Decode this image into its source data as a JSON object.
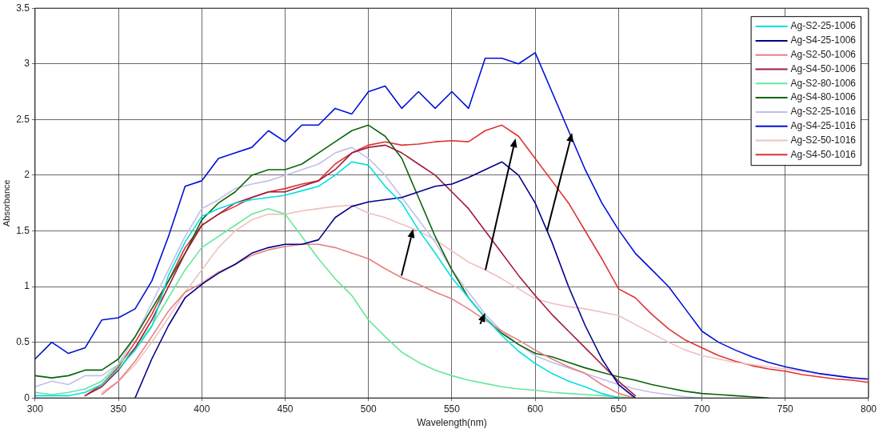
{
  "chart_data": {
    "type": "line",
    "xlabel": "Wavelength(nm)",
    "ylabel": "Absorbance",
    "x": [
      300,
      310,
      320,
      330,
      340,
      350,
      360,
      370,
      380,
      390,
      400,
      410,
      420,
      430,
      440,
      450,
      460,
      470,
      480,
      490,
      500,
      510,
      520,
      530,
      540,
      550,
      560,
      570,
      580,
      590,
      600,
      610,
      620,
      630,
      640,
      650,
      660,
      670,
      680,
      690,
      700,
      710,
      720,
      730,
      740,
      750,
      760,
      770,
      780,
      790,
      800
    ],
    "xlim": [
      300,
      800
    ],
    "xticks": [
      300,
      350,
      400,
      450,
      500,
      550,
      600,
      650,
      700,
      750,
      800
    ],
    "ylim": [
      0,
      3.5
    ],
    "yticks": [
      0,
      0.5,
      1,
      1.5,
      2,
      2.5,
      3,
      3.5
    ],
    "grid": true,
    "legend": "top right",
    "marker": "none",
    "line_style": "solid",
    "series": [
      {
        "name": "Ag-S2-25-1006",
        "color": "#00e0e0",
        "values": [
          0.02,
          0.02,
          0.02,
          0.05,
          0.12,
          0.26,
          0.43,
          0.64,
          1.1,
          1.4,
          1.63,
          1.7,
          1.75,
          1.78,
          1.8,
          1.82,
          1.86,
          1.9,
          2.0,
          2.12,
          2.09,
          1.9,
          1.75,
          1.51,
          1.3,
          1.08,
          0.9,
          0.72,
          0.56,
          0.42,
          0.31,
          0.22,
          0.15,
          0.1,
          0.04,
          0,
          null,
          null,
          null,
          null,
          null,
          null,
          null,
          null,
          null,
          null,
          null,
          null,
          null,
          null,
          null
        ]
      },
      {
        "name": "Ag-S4-25-1006",
        "color": "#00008b",
        "values": [
          null,
          null,
          null,
          null,
          null,
          null,
          0,
          0.35,
          0.65,
          0.9,
          1.02,
          1.12,
          1.2,
          1.3,
          1.35,
          1.38,
          1.38,
          1.42,
          1.62,
          1.72,
          1.76,
          1.78,
          1.8,
          1.85,
          1.9,
          1.92,
          1.98,
          2.05,
          2.12,
          2.0,
          1.75,
          1.4,
          1.0,
          0.65,
          0.35,
          0.12,
          0,
          null,
          null,
          null,
          null,
          null,
          null,
          null,
          null,
          null,
          null,
          null,
          null,
          null,
          null
        ]
      },
      {
        "name": "Ag-S2-50-1006",
        "color": "#e88080",
        "values": [
          null,
          null,
          null,
          null,
          0.03,
          0.15,
          0.33,
          0.55,
          0.78,
          0.95,
          1.03,
          1.13,
          1.2,
          1.28,
          1.33,
          1.36,
          1.38,
          1.38,
          1.35,
          1.3,
          1.25,
          1.16,
          1.08,
          1.02,
          0.95,
          0.89,
          0.8,
          0.7,
          0.6,
          0.52,
          0.43,
          0.35,
          0.28,
          0.22,
          0.12,
          0.04,
          0,
          null,
          null,
          null,
          null,
          null,
          null,
          null,
          null,
          null,
          null,
          null,
          null,
          null,
          null
        ]
      },
      {
        "name": "Ag-S4-50-1006",
        "color": "#a01c3c",
        "values": [
          null,
          null,
          null,
          0.02,
          0.1,
          0.25,
          0.45,
          0.7,
          1.0,
          1.3,
          1.55,
          1.65,
          1.75,
          1.8,
          1.85,
          1.85,
          1.9,
          1.95,
          2.05,
          2.2,
          2.25,
          2.27,
          2.2,
          2.1,
          2.0,
          1.85,
          1.7,
          1.5,
          1.3,
          1.1,
          0.92,
          0.75,
          0.6,
          0.45,
          0.3,
          0.15,
          0.02,
          null,
          null,
          null,
          null,
          null,
          null,
          null,
          null,
          null,
          null,
          null,
          null,
          null,
          null
        ]
      },
      {
        "name": "Ag-S2-80-1006",
        "color": "#66e899",
        "values": [
          0.05,
          0.03,
          0.05,
          0.08,
          0.15,
          0.3,
          0.45,
          0.65,
          0.9,
          1.15,
          1.35,
          1.45,
          1.55,
          1.65,
          1.7,
          1.65,
          1.45,
          1.25,
          1.07,
          0.92,
          0.7,
          0.55,
          0.41,
          0.32,
          0.25,
          0.2,
          0.16,
          0.13,
          0.1,
          0.08,
          0.07,
          0.05,
          0.04,
          0.03,
          0.02,
          0.01,
          0,
          null,
          null,
          null,
          null,
          null,
          null,
          null,
          null,
          null,
          null,
          null,
          null,
          null,
          null
        ]
      },
      {
        "name": "Ag-S4-80-1006",
        "color": "#0a640a",
        "values": [
          0.2,
          0.18,
          0.2,
          0.25,
          0.25,
          0.35,
          0.55,
          0.8,
          1.05,
          1.3,
          1.6,
          1.75,
          1.85,
          2.0,
          2.05,
          2.05,
          2.1,
          2.2,
          2.3,
          2.4,
          2.45,
          2.35,
          2.15,
          1.8,
          1.45,
          1.15,
          0.9,
          0.72,
          0.58,
          0.48,
          0.4,
          0.37,
          0.32,
          0.27,
          0.23,
          0.19,
          0.16,
          0.12,
          0.09,
          0.06,
          0.04,
          0.03,
          0.02,
          0.01,
          0,
          null,
          null,
          null,
          null,
          null,
          null
        ]
      },
      {
        "name": "Ag-S2-25-1016",
        "color": "#c0c0ea",
        "values": [
          0.1,
          0.15,
          0.12,
          0.2,
          0.2,
          0.3,
          0.55,
          0.85,
          1.15,
          1.45,
          1.7,
          1.78,
          1.88,
          1.92,
          1.95,
          2.0,
          2.05,
          2.1,
          2.2,
          2.25,
          2.15,
          2.0,
          1.8,
          1.6,
          1.4,
          1.15,
          0.95,
          0.75,
          0.6,
          0.48,
          0.38,
          0.32,
          0.27,
          0.22,
          0.17,
          0.12,
          0.08,
          0.05,
          0.03,
          0.01,
          0,
          null,
          null,
          null,
          null,
          null,
          null,
          null,
          null,
          null,
          null
        ]
      },
      {
        "name": "Ag-S4-25-1016",
        "color": "#0010d8",
        "values": [
          0.35,
          0.5,
          0.4,
          0.45,
          0.7,
          0.72,
          0.8,
          1.05,
          1.45,
          1.9,
          1.95,
          2.15,
          2.2,
          2.25,
          2.4,
          2.3,
          2.45,
          2.45,
          2.6,
          2.55,
          2.75,
          2.8,
          2.6,
          2.75,
          2.6,
          2.75,
          2.6,
          3.05,
          3.05,
          3.0,
          3.1,
          2.75,
          2.4,
          2.05,
          1.75,
          1.51,
          1.3,
          1.15,
          1.0,
          0.8,
          0.6,
          0.5,
          0.43,
          0.37,
          0.32,
          0.28,
          0.25,
          0.22,
          0.2,
          0.18,
          0.17
        ]
      },
      {
        "name": "Ag-S2-50-1016",
        "color": "#f0c0c0",
        "values": [
          null,
          null,
          null,
          null,
          0.05,
          0.15,
          0.3,
          0.5,
          0.72,
          0.95,
          1.15,
          1.35,
          1.5,
          1.6,
          1.65,
          1.65,
          1.68,
          1.7,
          1.72,
          1.73,
          1.66,
          1.62,
          1.56,
          1.5,
          1.42,
          1.32,
          1.22,
          1.15,
          1.07,
          0.98,
          0.89,
          0.85,
          0.82,
          0.8,
          0.77,
          0.74,
          0.66,
          0.58,
          0.5,
          0.43,
          0.38,
          0.35,
          0.32,
          0.3,
          0.28,
          0.26,
          0.24,
          0.22,
          0.2,
          0.18,
          0.16
        ]
      },
      {
        "name": "Ag-S4-50-1016",
        "color": "#e03232",
        "values": [
          null,
          null,
          null,
          0.02,
          0.12,
          0.28,
          0.5,
          0.75,
          1.05,
          1.35,
          1.55,
          1.65,
          1.72,
          1.8,
          1.85,
          1.88,
          1.92,
          1.95,
          2.1,
          2.2,
          2.27,
          2.3,
          2.27,
          2.28,
          2.3,
          2.31,
          2.3,
          2.4,
          2.45,
          2.35,
          2.15,
          1.95,
          1.75,
          1.5,
          1.25,
          0.98,
          0.9,
          0.75,
          0.62,
          0.52,
          0.45,
          0.38,
          0.33,
          0.29,
          0.26,
          0.24,
          0.21,
          0.19,
          0.17,
          0.16,
          0.14
        ]
      }
    ]
  }
}
